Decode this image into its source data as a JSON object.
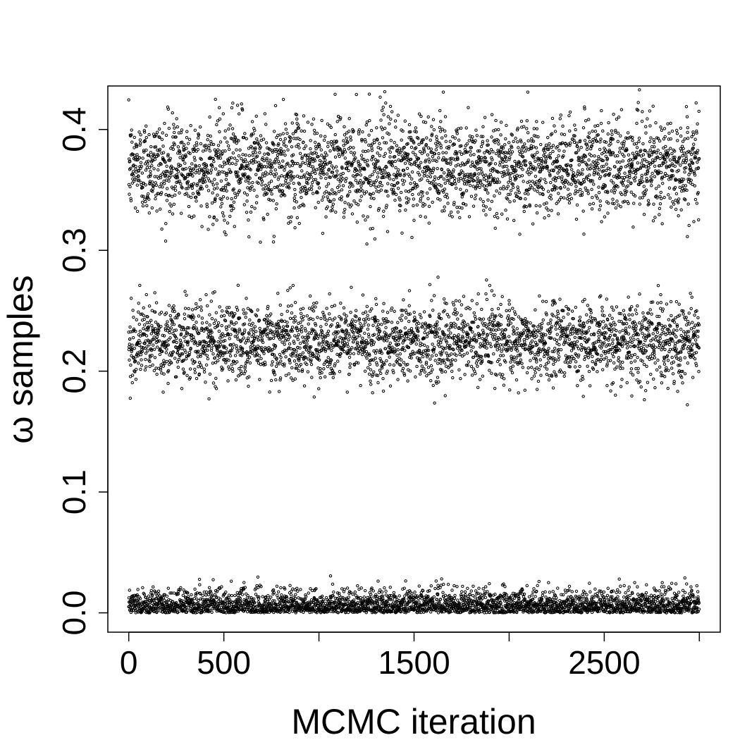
{
  "chart_data": {
    "type": "scatter",
    "title": "",
    "xlabel": "MCMC iteration",
    "ylabel": "ω samples",
    "xlim": [
      -110,
      3110
    ],
    "ylim": [
      -0.016,
      0.436
    ],
    "x_ticks": [
      0,
      500,
      1000,
      1500,
      2000,
      2500,
      3000
    ],
    "x_tick_labels": [
      "0",
      "500",
      "",
      "1500",
      "",
      "2500",
      ""
    ],
    "y_ticks": [
      0.0,
      0.1,
      0.2,
      0.3,
      0.4
    ],
    "y_tick_labels": [
      "0.0",
      "0.1",
      "0.2",
      "0.3",
      "0.4"
    ],
    "grid": false,
    "legend": "none",
    "marker": "open-circle",
    "n_iterations": 3000,
    "bands": [
      {
        "center": 0.369,
        "spread": 0.02,
        "min": 0.305,
        "max": 0.435
      },
      {
        "center": 0.225,
        "spread": 0.016,
        "min": 0.169,
        "max": 0.278
      },
      {
        "center": 0.009,
        "spread": 0.009,
        "min": 0.0,
        "max": 0.06
      }
    ]
  }
}
